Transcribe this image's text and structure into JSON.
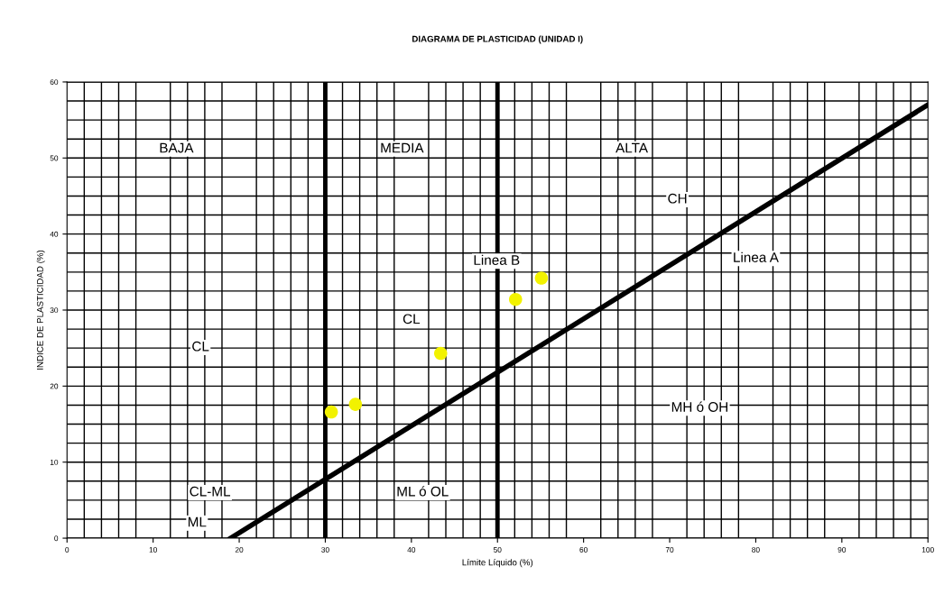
{
  "chart_data": {
    "type": "scatter",
    "title": "DIAGRAMA DE PLASTICIDAD (UNIDAD I)",
    "xlabel": "Límite Líquido (%)",
    "ylabel": "INDICE DE PLASTICIDAD (%)",
    "series": [
      {
        "color": "#f2f200",
        "x": [
          30.7,
          33.5,
          43.4,
          52.1,
          55.1
        ],
        "values": [
          16.6,
          17.6,
          24.3,
          31.4,
          34.2
        ],
        "marker": "circle"
      },
      {
        "type": "line",
        "color": "#000000",
        "x": [
          19,
          100
        ],
        "values": [
          0,
          57
        ],
        "marker": "none",
        "line_style": "solid"
      }
    ],
    "xlim": [
      0,
      100
    ],
    "xticks": [
      0,
      10,
      20,
      30,
      40,
      50,
      60,
      70,
      80,
      90,
      100
    ],
    "ylim": [
      0,
      60
    ],
    "yticks": [
      0,
      10,
      20,
      30,
      40,
      50,
      60
    ],
    "grid": true,
    "ref_lines": [
      {
        "axis": "x",
        "value": 30,
        "color": "#000000",
        "line_style": "solid"
      },
      {
        "axis": "x",
        "value": 50,
        "color": "#000000",
        "line_style": "solid"
      }
    ],
    "annotations": [
      "BAJA",
      "MEDIA",
      "ALTA",
      "CH",
      "Linea A",
      "Linea B",
      "CL",
      "CL",
      "MH ó OH",
      "ML ó OL",
      "CL-ML",
      "ML"
    ]
  }
}
